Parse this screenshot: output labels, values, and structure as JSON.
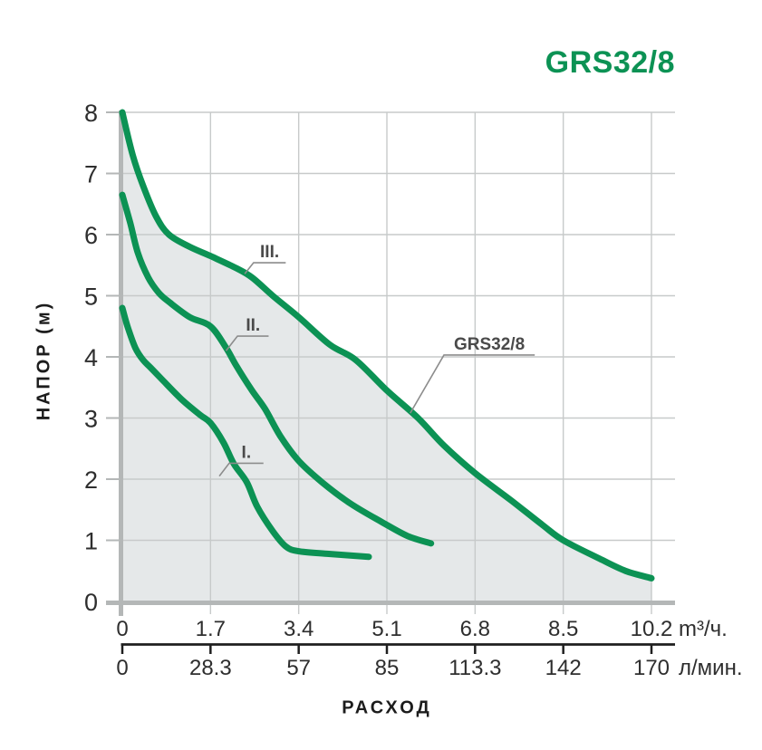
{
  "title": "GRS32/8",
  "colors": {
    "accent_green": "#0c9254",
    "curve_green": "#0c9254",
    "area_fill": "#e5e8e9",
    "gridline": "#c7caca",
    "axis_gray": "#b4b7b7",
    "secondary_axis_black": "#1f1f1f",
    "tick_text": "#2e2e2e",
    "annotation_text": "#4a4a4a",
    "leader_line": "#8c8c8c"
  },
  "chart_data": {
    "type": "line",
    "title": "GRS32/8",
    "xlabel": "РАСХОД",
    "ylabel": "НАПОР (м)",
    "xlim": [
      0,
      10.2
    ],
    "ylim": [
      0,
      8
    ],
    "grid": true,
    "x_ticks": [
      {
        "v": 0,
        "m3h": "0",
        "lmin": "0"
      },
      {
        "v": 1.7,
        "m3h": "1.7",
        "lmin": "28.3"
      },
      {
        "v": 3.4,
        "m3h": "3.4",
        "lmin": "57"
      },
      {
        "v": 5.1,
        "m3h": "5.1",
        "lmin": "85"
      },
      {
        "v": 6.8,
        "m3h": "6.8",
        "lmin": "113.3"
      },
      {
        "v": 8.5,
        "m3h": "8.5",
        "lmin": "142"
      },
      {
        "v": 10.2,
        "m3h": "10.2",
        "lmin": "170"
      }
    ],
    "x_units": {
      "m3h": "m³/ч.",
      "lmin": "л/мин."
    },
    "y_ticks": [
      "0",
      "1",
      "2",
      "3",
      "4",
      "5",
      "6",
      "7",
      "8"
    ],
    "series": [
      {
        "name": "I.",
        "filled": false,
        "points": [
          [
            0,
            4.8
          ],
          [
            0.1,
            4.5
          ],
          [
            0.25,
            4.15
          ],
          [
            0.4,
            3.95
          ],
          [
            0.55,
            3.82
          ],
          [
            0.8,
            3.6
          ],
          [
            1.15,
            3.3
          ],
          [
            1.5,
            3.05
          ],
          [
            1.7,
            2.92
          ],
          [
            1.95,
            2.6
          ],
          [
            2.15,
            2.25
          ],
          [
            2.4,
            1.95
          ],
          [
            2.6,
            1.55
          ],
          [
            2.9,
            1.15
          ],
          [
            3.15,
            0.9
          ],
          [
            3.4,
            0.82
          ],
          [
            3.95,
            0.78
          ],
          [
            4.75,
            0.73
          ]
        ]
      },
      {
        "name": "II.",
        "filled": false,
        "points": [
          [
            0,
            6.65
          ],
          [
            0.15,
            6.2
          ],
          [
            0.3,
            5.7
          ],
          [
            0.5,
            5.3
          ],
          [
            0.7,
            5.05
          ],
          [
            0.9,
            4.9
          ],
          [
            1.3,
            4.65
          ],
          [
            1.7,
            4.5
          ],
          [
            2.0,
            4.15
          ],
          [
            2.2,
            3.85
          ],
          [
            2.5,
            3.45
          ],
          [
            2.75,
            3.15
          ],
          [
            3.05,
            2.7
          ],
          [
            3.4,
            2.3
          ],
          [
            3.85,
            1.95
          ],
          [
            4.4,
            1.6
          ],
          [
            5.0,
            1.3
          ],
          [
            5.5,
            1.07
          ],
          [
            5.95,
            0.95
          ]
        ]
      },
      {
        "name": "III.",
        "filled": true,
        "points": [
          [
            0,
            8.0
          ],
          [
            0.2,
            7.3
          ],
          [
            0.4,
            6.8
          ],
          [
            0.65,
            6.3
          ],
          [
            0.9,
            6.0
          ],
          [
            1.3,
            5.8
          ],
          [
            1.7,
            5.65
          ],
          [
            2.2,
            5.45
          ],
          [
            2.5,
            5.3
          ],
          [
            2.9,
            5.0
          ],
          [
            3.4,
            4.65
          ],
          [
            4.0,
            4.2
          ],
          [
            4.5,
            3.95
          ],
          [
            5.1,
            3.45
          ],
          [
            5.7,
            3.0
          ],
          [
            6.2,
            2.55
          ],
          [
            6.8,
            2.1
          ],
          [
            7.5,
            1.65
          ],
          [
            8.1,
            1.25
          ],
          [
            8.5,
            1.0
          ],
          [
            9.2,
            0.7
          ],
          [
            9.7,
            0.5
          ],
          [
            10.2,
            0.38
          ]
        ]
      }
    ],
    "annotations": [
      {
        "text": "I.",
        "attach": [
          1.87,
          2.05
        ],
        "underline": [
          [
            2.06,
            2.26
          ],
          [
            2.72,
            2.26
          ]
        ]
      },
      {
        "text": "II.",
        "attach": [
          2.0,
          4.1
        ],
        "underline": [
          [
            2.22,
            4.34
          ],
          [
            2.82,
            4.34
          ]
        ]
      },
      {
        "text": "III.",
        "attach": [
          2.36,
          5.36
        ],
        "underline": [
          [
            2.53,
            5.54
          ],
          [
            3.15,
            5.54
          ]
        ]
      },
      {
        "text": "GRS32/8",
        "attach": [
          5.55,
          3.08
        ],
        "underline": [
          [
            6.2,
            4.03
          ],
          [
            7.95,
            4.03
          ]
        ]
      }
    ],
    "legend_position": "none"
  }
}
